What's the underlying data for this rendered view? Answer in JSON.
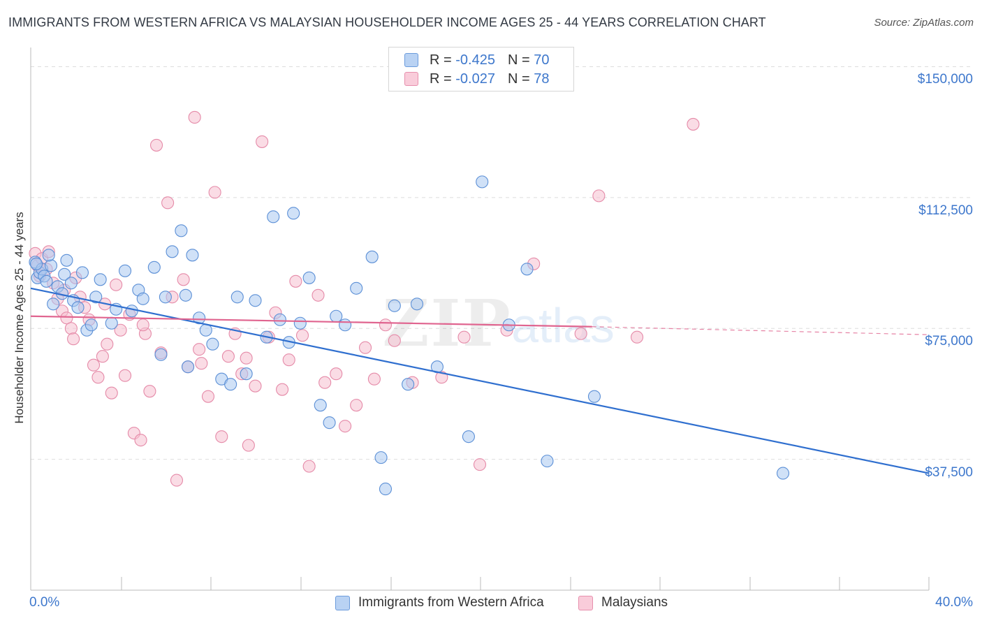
{
  "title": "IMMIGRANTS FROM WESTERN AFRICA VS MALAYSIAN HOUSEHOLDER INCOME AGES 25 - 44 YEARS CORRELATION CHART",
  "source": "Source: ZipAtlas.com",
  "colors": {
    "blue_fill": "#a9c8f0",
    "blue_stroke": "#5b8fd6",
    "blue_line": "#2f6fcf",
    "pink_fill": "#f6bfd0",
    "pink_stroke": "#e58aa8",
    "pink_line": "#e0648f",
    "accent_text": "#3d77cc",
    "grid": "#dddddd"
  },
  "legend": {
    "rows": [
      {
        "r_label": "R =",
        "r_value": "-0.425",
        "n_label": "N =",
        "n_value": "70"
      },
      {
        "r_label": "R =",
        "r_value": "-0.027",
        "n_label": "N =",
        "n_value": "78"
      }
    ]
  },
  "watermark": {
    "zip": "ZIP",
    "atlas": "atlas"
  },
  "chart_data": {
    "type": "scatter",
    "xlabel": "",
    "ylabel": "Householder Income Ages 25 - 44 years",
    "xlim": [
      0,
      40
    ],
    "ylim": [
      0,
      160000
    ],
    "x_tick_labels": {
      "left": "0.0%",
      "right": "40.0%"
    },
    "y_ticks": [
      {
        "value": 37500,
        "label": "$37,500"
      },
      {
        "value": 75000,
        "label": "$75,000"
      },
      {
        "value": 112500,
        "label": "$112,500"
      },
      {
        "value": 150000,
        "label": "$150,000"
      }
    ],
    "grid": true,
    "series": [
      {
        "name": "Immigrants from Western Africa",
        "r": -0.425,
        "n": 70,
        "trend": {
          "x": [
            0,
            40
          ],
          "y": [
            86500,
            33500
          ],
          "style": "solid"
        },
        "points": [
          [
            0.2,
            94000
          ],
          [
            0.3,
            89500
          ],
          [
            0.4,
            91000
          ],
          [
            0.5,
            92000
          ],
          [
            0.6,
            90000
          ],
          [
            0.7,
            88500
          ],
          [
            0.9,
            93000
          ],
          [
            1.0,
            82000
          ],
          [
            1.2,
            87000
          ],
          [
            1.4,
            85000
          ],
          [
            1.5,
            90500
          ],
          [
            1.6,
            94500
          ],
          [
            1.8,
            88000
          ],
          [
            1.9,
            83000
          ],
          [
            2.1,
            81000
          ],
          [
            2.3,
            91000
          ],
          [
            2.5,
            74500
          ],
          [
            2.7,
            76000
          ],
          [
            2.9,
            84000
          ],
          [
            3.1,
            89000
          ],
          [
            3.6,
            76500
          ],
          [
            3.8,
            80500
          ],
          [
            4.2,
            91500
          ],
          [
            4.5,
            80000
          ],
          [
            4.8,
            86000
          ],
          [
            5.0,
            83500
          ],
          [
            5.5,
            92500
          ],
          [
            5.8,
            67500
          ],
          [
            6.0,
            84000
          ],
          [
            6.3,
            97000
          ],
          [
            6.7,
            103000
          ],
          [
            6.9,
            84500
          ],
          [
            7.2,
            96000
          ],
          [
            7.5,
            78000
          ],
          [
            7.8,
            74500
          ],
          [
            8.1,
            70500
          ],
          [
            8.5,
            60500
          ],
          [
            8.9,
            59000
          ],
          [
            9.2,
            84000
          ],
          [
            9.6,
            62000
          ],
          [
            10.0,
            83000
          ],
          [
            10.5,
            72500
          ],
          [
            10.8,
            107000
          ],
          [
            11.1,
            77500
          ],
          [
            11.5,
            71000
          ],
          [
            12.0,
            76500
          ],
          [
            12.4,
            89500
          ],
          [
            12.9,
            53000
          ],
          [
            13.3,
            48000
          ],
          [
            13.6,
            78500
          ],
          [
            14.0,
            76000
          ],
          [
            14.5,
            86500
          ],
          [
            15.2,
            95500
          ],
          [
            15.6,
            38000
          ],
          [
            15.8,
            29000
          ],
          [
            16.2,
            81500
          ],
          [
            16.8,
            59000
          ],
          [
            17.2,
            82000
          ],
          [
            18.1,
            64000
          ],
          [
            19.5,
            44000
          ],
          [
            20.1,
            117000
          ],
          [
            21.3,
            76000
          ],
          [
            22.1,
            92000
          ],
          [
            23.0,
            37000
          ],
          [
            25.1,
            55500
          ],
          [
            0.8,
            96000
          ],
          [
            0.25,
            93500
          ],
          [
            11.7,
            108000
          ],
          [
            7.0,
            64000
          ],
          [
            33.5,
            33500
          ]
        ]
      },
      {
        "name": "Malaysians",
        "r": -0.027,
        "n": 78,
        "trend": {
          "x": [
            0,
            25
          ],
          "y": [
            78500,
            75500
          ],
          "style": "solid",
          "dashed_extension": {
            "x": [
              25,
              40
            ],
            "y": [
              75500,
              73200
            ]
          }
        },
        "points": [
          [
            0.2,
            96500
          ],
          [
            0.3,
            93000
          ],
          [
            0.4,
            90000
          ],
          [
            0.5,
            95000
          ],
          [
            0.7,
            92000
          ],
          [
            0.8,
            97000
          ],
          [
            1.0,
            88000
          ],
          [
            1.2,
            83500
          ],
          [
            1.4,
            80000
          ],
          [
            1.5,
            86000
          ],
          [
            1.6,
            78000
          ],
          [
            1.8,
            75000
          ],
          [
            1.9,
            72000
          ],
          [
            2.0,
            89500
          ],
          [
            2.2,
            84000
          ],
          [
            2.4,
            81000
          ],
          [
            2.6,
            77500
          ],
          [
            2.8,
            64500
          ],
          [
            3.0,
            61000
          ],
          [
            3.2,
            67000
          ],
          [
            3.4,
            70500
          ],
          [
            3.6,
            56500
          ],
          [
            3.8,
            87500
          ],
          [
            4.0,
            74500
          ],
          [
            4.2,
            61500
          ],
          [
            4.4,
            79000
          ],
          [
            4.6,
            45000
          ],
          [
            4.9,
            43000
          ],
          [
            5.1,
            73500
          ],
          [
            5.3,
            57000
          ],
          [
            5.6,
            127500
          ],
          [
            5.8,
            68000
          ],
          [
            6.1,
            111000
          ],
          [
            6.3,
            84000
          ],
          [
            6.5,
            31500
          ],
          [
            6.8,
            89000
          ],
          [
            7.0,
            64000
          ],
          [
            7.3,
            135500
          ],
          [
            7.6,
            65000
          ],
          [
            7.9,
            55500
          ],
          [
            8.2,
            114000
          ],
          [
            8.5,
            44000
          ],
          [
            8.8,
            67000
          ],
          [
            9.1,
            73500
          ],
          [
            9.4,
            62000
          ],
          [
            9.7,
            41500
          ],
          [
            10.0,
            58500
          ],
          [
            10.3,
            128500
          ],
          [
            10.6,
            72500
          ],
          [
            10.9,
            79500
          ],
          [
            11.2,
            57500
          ],
          [
            11.5,
            66000
          ],
          [
            11.8,
            88500
          ],
          [
            12.1,
            73000
          ],
          [
            12.4,
            35500
          ],
          [
            12.8,
            84500
          ],
          [
            13.1,
            59500
          ],
          [
            13.6,
            62000
          ],
          [
            14.0,
            47000
          ],
          [
            14.5,
            53000
          ],
          [
            14.9,
            69500
          ],
          [
            15.3,
            60500
          ],
          [
            15.8,
            76000
          ],
          [
            16.2,
            71500
          ],
          [
            17.0,
            59500
          ],
          [
            18.3,
            61000
          ],
          [
            19.3,
            72500
          ],
          [
            20.0,
            36000
          ],
          [
            21.2,
            74500
          ],
          [
            22.4,
            93500
          ],
          [
            24.5,
            73500
          ],
          [
            25.3,
            113000
          ],
          [
            27.0,
            72500
          ],
          [
            29.5,
            133500
          ],
          [
            3.3,
            82000
          ],
          [
            5.0,
            76000
          ],
          [
            7.5,
            69000
          ],
          [
            9.6,
            66500
          ]
        ]
      }
    ]
  }
}
